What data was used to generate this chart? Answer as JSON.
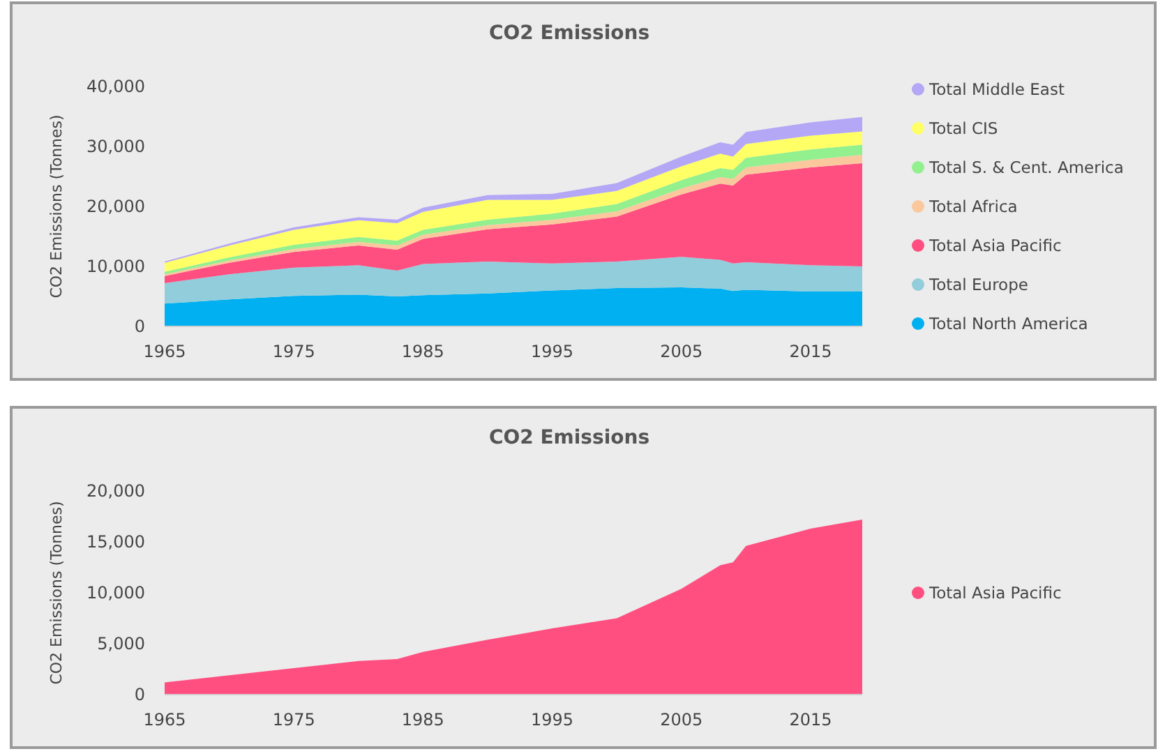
{
  "chart_data": [
    {
      "type": "area",
      "title": "CO2 Emissions",
      "ylabel": "CO2 Emissions (Tonnes)",
      "stacked": true,
      "legend": "right",
      "grid": false,
      "x": [
        1965,
        1970,
        1975,
        1980,
        1983,
        1985,
        1990,
        1995,
        2000,
        2005,
        2008,
        2009,
        2010,
        2015,
        2019
      ],
      "xlim": [
        1965,
        2019
      ],
      "xticks": [
        1965,
        1975,
        1985,
        1995,
        2005,
        2015
      ],
      "ylim": [
        0,
        40000
      ],
      "yticks": [
        {
          "value": 0,
          "label": "0"
        },
        {
          "value": 10000,
          "label": "10,000"
        },
        {
          "value": 20000,
          "label": "20,000"
        },
        {
          "value": 30000,
          "label": "30,000"
        },
        {
          "value": 40000,
          "label": "40,000"
        }
      ],
      "series": [
        {
          "name": "Total North America",
          "color": "#00b0f0",
          "values": [
            3800,
            4500,
            5100,
            5300,
            5000,
            5200,
            5500,
            6000,
            6400,
            6500,
            6300,
            5900,
            6100,
            5800,
            5800
          ]
        },
        {
          "name": "Total Europe",
          "color": "#92cddc",
          "values": [
            3400,
            4200,
            4700,
            4900,
            4300,
            5200,
            5300,
            4500,
            4400,
            5100,
            4800,
            4600,
            4600,
            4400,
            4200
          ]
        },
        {
          "name": "Total Asia Pacific",
          "color": "#ff4f81",
          "values": [
            1200,
            1900,
            2600,
            3300,
            3500,
            4200,
            5400,
            6500,
            7500,
            10400,
            12700,
            13000,
            14600,
            16300,
            17200
          ]
        },
        {
          "name": "Total Africa",
          "color": "#fbc89e",
          "values": [
            300,
            400,
            500,
            600,
            700,
            700,
            700,
            800,
            900,
            1000,
            1100,
            1100,
            1200,
            1300,
            1400
          ]
        },
        {
          "name": "Total S. & Cent. America",
          "color": "#92f08e",
          "values": [
            400,
            500,
            700,
            800,
            800,
            800,
            900,
            1000,
            1200,
            1400,
            1500,
            1500,
            1600,
            1700,
            1700
          ]
        },
        {
          "name": "Total CIS",
          "color": "#ffff66",
          "values": [
            1500,
            2000,
            2500,
            2800,
            2900,
            3000,
            3300,
            2300,
            2200,
            2300,
            2400,
            2200,
            2300,
            2300,
            2200
          ]
        },
        {
          "name": "Total Middle East",
          "color": "#b4a7f5",
          "values": [
            200,
            300,
            400,
            500,
            600,
            700,
            800,
            1000,
            1300,
            1600,
            1900,
            2000,
            2000,
            2200,
            2400
          ]
        }
      ]
    },
    {
      "type": "area",
      "title": "CO2 Emissions",
      "ylabel": "CO2 Emissions (Tonnes)",
      "legend": "right",
      "grid": false,
      "x": [
        1965,
        1970,
        1975,
        1980,
        1983,
        1985,
        1990,
        1995,
        2000,
        2005,
        2008,
        2009,
        2010,
        2015,
        2019
      ],
      "xlim": [
        1965,
        2019
      ],
      "xticks": [
        1965,
        1975,
        1985,
        1995,
        2005,
        2015
      ],
      "ylim": [
        0,
        20000
      ],
      "yticks": [
        {
          "value": 0,
          "label": "0"
        },
        {
          "value": 5000,
          "label": "5,000"
        },
        {
          "value": 10000,
          "label": "10,000"
        },
        {
          "value": 15000,
          "label": "15,000"
        },
        {
          "value": 20000,
          "label": "20,000"
        }
      ],
      "series": [
        {
          "name": "Total Asia Pacific",
          "color": "#ff4f81",
          "values": [
            1200,
            1900,
            2600,
            3300,
            3500,
            4200,
            5400,
            6500,
            7500,
            10400,
            12700,
            13000,
            14600,
            16300,
            17200
          ]
        }
      ]
    }
  ]
}
